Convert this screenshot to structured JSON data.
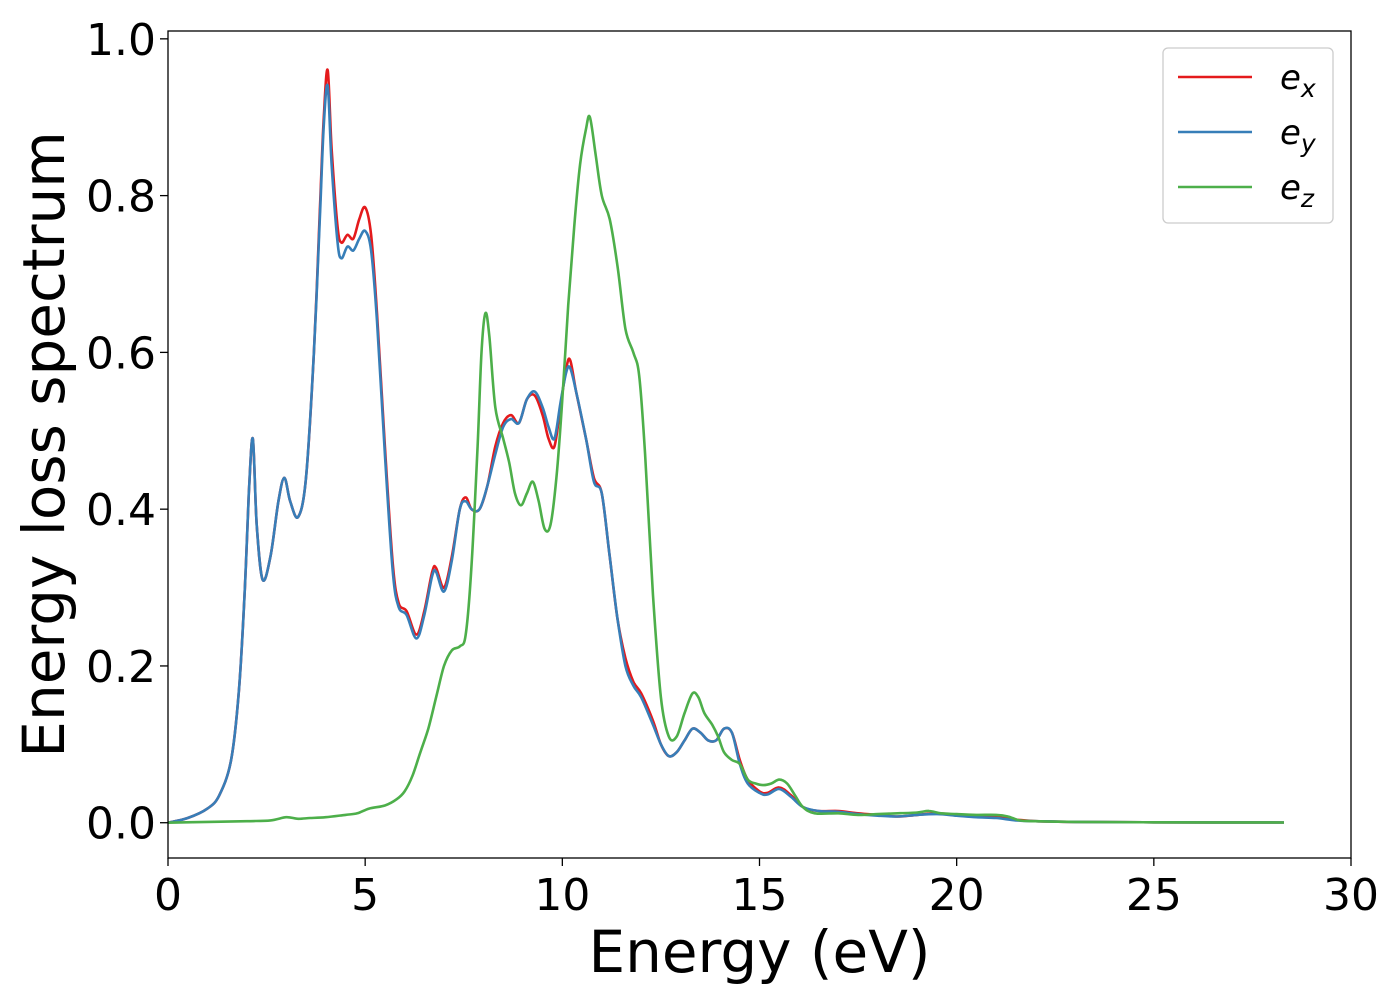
{
  "chart_data": {
    "type": "line",
    "title": "",
    "xlabel": "Energy (eV)",
    "ylabel": "Energy loss spectrum",
    "xlim": [
      0,
      30
    ],
    "ylim": [
      -0.045,
      1.01
    ],
    "xticks": [
      0,
      5,
      10,
      15,
      20,
      25,
      30
    ],
    "xtick_labels": [
      "0",
      "5",
      "10",
      "15",
      "20",
      "25",
      "30"
    ],
    "yticks": [
      0.0,
      0.2,
      0.4,
      0.6,
      0.8,
      1.0
    ],
    "ytick_labels": [
      "0.0",
      "0.2",
      "0.4",
      "0.6",
      "0.8",
      "1.0"
    ],
    "grid": false,
    "legend_position": "top-right",
    "series": [
      {
        "name": "e_x",
        "base": "e",
        "sub": "x",
        "color": "#e41a1c",
        "points": [
          [
            0,
            0
          ],
          [
            0.5,
            0.006
          ],
          [
            1.0,
            0.018
          ],
          [
            1.3,
            0.035
          ],
          [
            1.6,
            0.08
          ],
          [
            1.8,
            0.17
          ],
          [
            1.95,
            0.3
          ],
          [
            2.05,
            0.42
          ],
          [
            2.15,
            0.49
          ],
          [
            2.25,
            0.38
          ],
          [
            2.4,
            0.31
          ],
          [
            2.6,
            0.34
          ],
          [
            2.8,
            0.41
          ],
          [
            2.95,
            0.44
          ],
          [
            3.1,
            0.41
          ],
          [
            3.3,
            0.39
          ],
          [
            3.5,
            0.44
          ],
          [
            3.7,
            0.6
          ],
          [
            3.85,
            0.78
          ],
          [
            3.95,
            0.9
          ],
          [
            4.05,
            0.96
          ],
          [
            4.15,
            0.86
          ],
          [
            4.3,
            0.76
          ],
          [
            4.4,
            0.74
          ],
          [
            4.55,
            0.75
          ],
          [
            4.7,
            0.745
          ],
          [
            4.85,
            0.77
          ],
          [
            5.0,
            0.785
          ],
          [
            5.15,
            0.75
          ],
          [
            5.3,
            0.65
          ],
          [
            5.5,
            0.48
          ],
          [
            5.7,
            0.33
          ],
          [
            5.85,
            0.28
          ],
          [
            6.05,
            0.27
          ],
          [
            6.3,
            0.24
          ],
          [
            6.5,
            0.27
          ],
          [
            6.7,
            0.32
          ],
          [
            6.8,
            0.325
          ],
          [
            7.0,
            0.3
          ],
          [
            7.2,
            0.34
          ],
          [
            7.4,
            0.4
          ],
          [
            7.55,
            0.415
          ],
          [
            7.7,
            0.4
          ],
          [
            7.9,
            0.4
          ],
          [
            8.1,
            0.43
          ],
          [
            8.3,
            0.48
          ],
          [
            8.5,
            0.51
          ],
          [
            8.7,
            0.52
          ],
          [
            8.9,
            0.51
          ],
          [
            9.1,
            0.54
          ],
          [
            9.3,
            0.545
          ],
          [
            9.5,
            0.52
          ],
          [
            9.65,
            0.49
          ],
          [
            9.8,
            0.48
          ],
          [
            9.95,
            0.53
          ],
          [
            10.1,
            0.58
          ],
          [
            10.2,
            0.59
          ],
          [
            10.35,
            0.55
          ],
          [
            10.6,
            0.49
          ],
          [
            10.8,
            0.44
          ],
          [
            11.0,
            0.42
          ],
          [
            11.2,
            0.34
          ],
          [
            11.4,
            0.26
          ],
          [
            11.6,
            0.21
          ],
          [
            11.8,
            0.18
          ],
          [
            12.0,
            0.165
          ],
          [
            12.3,
            0.13
          ],
          [
            12.5,
            0.1
          ],
          [
            12.7,
            0.085
          ],
          [
            12.9,
            0.09
          ],
          [
            13.1,
            0.105
          ],
          [
            13.3,
            0.12
          ],
          [
            13.5,
            0.115
          ],
          [
            13.7,
            0.105
          ],
          [
            13.9,
            0.105
          ],
          [
            14.1,
            0.12
          ],
          [
            14.3,
            0.115
          ],
          [
            14.5,
            0.08
          ],
          [
            14.7,
            0.055
          ],
          [
            15.0,
            0.04
          ],
          [
            15.2,
            0.038
          ],
          [
            15.5,
            0.045
          ],
          [
            15.8,
            0.035
          ],
          [
            16.1,
            0.02
          ],
          [
            16.5,
            0.015
          ],
          [
            17.0,
            0.015
          ],
          [
            17.5,
            0.012
          ],
          [
            18.0,
            0.01
          ],
          [
            18.5,
            0.008
          ],
          [
            19.0,
            0.01
          ],
          [
            19.5,
            0.012
          ],
          [
            20.0,
            0.01
          ],
          [
            20.5,
            0.008
          ],
          [
            21.0,
            0.007
          ],
          [
            21.5,
            0.004
          ],
          [
            22.0,
            0.002
          ],
          [
            23.0,
            0.001
          ],
          [
            25.0,
            0.0005
          ],
          [
            28.3,
            0.0003
          ]
        ]
      },
      {
        "name": "e_y",
        "base": "e",
        "sub": "y",
        "color": "#377eb8",
        "points": [
          [
            0,
            0
          ],
          [
            0.5,
            0.006
          ],
          [
            1.0,
            0.018
          ],
          [
            1.3,
            0.035
          ],
          [
            1.6,
            0.08
          ],
          [
            1.8,
            0.17
          ],
          [
            1.95,
            0.3
          ],
          [
            2.05,
            0.42
          ],
          [
            2.15,
            0.49
          ],
          [
            2.25,
            0.38
          ],
          [
            2.4,
            0.31
          ],
          [
            2.6,
            0.34
          ],
          [
            2.8,
            0.41
          ],
          [
            2.95,
            0.44
          ],
          [
            3.1,
            0.41
          ],
          [
            3.3,
            0.39
          ],
          [
            3.5,
            0.44
          ],
          [
            3.7,
            0.6
          ],
          [
            3.85,
            0.77
          ],
          [
            3.95,
            0.89
          ],
          [
            4.05,
            0.94
          ],
          [
            4.15,
            0.84
          ],
          [
            4.3,
            0.74
          ],
          [
            4.4,
            0.72
          ],
          [
            4.55,
            0.735
          ],
          [
            4.7,
            0.73
          ],
          [
            4.85,
            0.745
          ],
          [
            5.0,
            0.755
          ],
          [
            5.15,
            0.73
          ],
          [
            5.3,
            0.64
          ],
          [
            5.5,
            0.47
          ],
          [
            5.7,
            0.32
          ],
          [
            5.85,
            0.275
          ],
          [
            6.05,
            0.265
          ],
          [
            6.3,
            0.235
          ],
          [
            6.5,
            0.265
          ],
          [
            6.7,
            0.315
          ],
          [
            6.8,
            0.32
          ],
          [
            7.0,
            0.295
          ],
          [
            7.2,
            0.335
          ],
          [
            7.4,
            0.4
          ],
          [
            7.55,
            0.41
          ],
          [
            7.7,
            0.4
          ],
          [
            7.9,
            0.4
          ],
          [
            8.1,
            0.43
          ],
          [
            8.3,
            0.47
          ],
          [
            8.5,
            0.505
          ],
          [
            8.7,
            0.515
          ],
          [
            8.9,
            0.51
          ],
          [
            9.1,
            0.54
          ],
          [
            9.3,
            0.55
          ],
          [
            9.5,
            0.53
          ],
          [
            9.65,
            0.505
          ],
          [
            9.8,
            0.49
          ],
          [
            9.95,
            0.535
          ],
          [
            10.1,
            0.575
          ],
          [
            10.2,
            0.58
          ],
          [
            10.35,
            0.55
          ],
          [
            10.6,
            0.49
          ],
          [
            10.8,
            0.435
          ],
          [
            11.0,
            0.42
          ],
          [
            11.2,
            0.34
          ],
          [
            11.4,
            0.26
          ],
          [
            11.6,
            0.2
          ],
          [
            11.8,
            0.175
          ],
          [
            12.0,
            0.16
          ],
          [
            12.3,
            0.125
          ],
          [
            12.5,
            0.1
          ],
          [
            12.7,
            0.085
          ],
          [
            12.9,
            0.09
          ],
          [
            13.1,
            0.105
          ],
          [
            13.3,
            0.12
          ],
          [
            13.5,
            0.115
          ],
          [
            13.7,
            0.105
          ],
          [
            13.9,
            0.105
          ],
          [
            14.1,
            0.12
          ],
          [
            14.3,
            0.115
          ],
          [
            14.5,
            0.075
          ],
          [
            14.7,
            0.05
          ],
          [
            15.0,
            0.038
          ],
          [
            15.2,
            0.036
          ],
          [
            15.5,
            0.043
          ],
          [
            15.8,
            0.033
          ],
          [
            16.1,
            0.02
          ],
          [
            16.5,
            0.015
          ],
          [
            17.0,
            0.014
          ],
          [
            17.5,
            0.011
          ],
          [
            18.0,
            0.009
          ],
          [
            18.5,
            0.008
          ],
          [
            19.0,
            0.01
          ],
          [
            19.5,
            0.011
          ],
          [
            20.0,
            0.009
          ],
          [
            20.5,
            0.007
          ],
          [
            21.0,
            0.006
          ],
          [
            21.5,
            0.003
          ],
          [
            22.0,
            0.002
          ],
          [
            23.0,
            0.001
          ],
          [
            25.0,
            0.0005
          ],
          [
            28.3,
            0.0003
          ]
        ]
      },
      {
        "name": "e_z",
        "base": "e",
        "sub": "z",
        "color": "#4daf4a",
        "points": [
          [
            0,
            0
          ],
          [
            1.0,
            0.001
          ],
          [
            2.0,
            0.002
          ],
          [
            2.6,
            0.003
          ],
          [
            3.0,
            0.007
          ],
          [
            3.3,
            0.005
          ],
          [
            3.6,
            0.006
          ],
          [
            4.0,
            0.007
          ],
          [
            4.5,
            0.01
          ],
          [
            4.8,
            0.012
          ],
          [
            5.1,
            0.018
          ],
          [
            5.5,
            0.022
          ],
          [
            5.8,
            0.03
          ],
          [
            6.0,
            0.04
          ],
          [
            6.2,
            0.06
          ],
          [
            6.4,
            0.09
          ],
          [
            6.6,
            0.12
          ],
          [
            6.8,
            0.16
          ],
          [
            7.0,
            0.2
          ],
          [
            7.2,
            0.22
          ],
          [
            7.4,
            0.225
          ],
          [
            7.55,
            0.24
          ],
          [
            7.7,
            0.33
          ],
          [
            7.85,
            0.48
          ],
          [
            7.95,
            0.6
          ],
          [
            8.05,
            0.65
          ],
          [
            8.15,
            0.62
          ],
          [
            8.3,
            0.53
          ],
          [
            8.5,
            0.49
          ],
          [
            8.65,
            0.46
          ],
          [
            8.8,
            0.42
          ],
          [
            8.95,
            0.405
          ],
          [
            9.1,
            0.42
          ],
          [
            9.25,
            0.435
          ],
          [
            9.4,
            0.41
          ],
          [
            9.55,
            0.375
          ],
          [
            9.7,
            0.38
          ],
          [
            9.85,
            0.44
          ],
          [
            10.0,
            0.54
          ],
          [
            10.15,
            0.66
          ],
          [
            10.3,
            0.76
          ],
          [
            10.45,
            0.84
          ],
          [
            10.6,
            0.885
          ],
          [
            10.7,
            0.9
          ],
          [
            10.85,
            0.85
          ],
          [
            11.0,
            0.8
          ],
          [
            11.2,
            0.77
          ],
          [
            11.4,
            0.71
          ],
          [
            11.6,
            0.63
          ],
          [
            11.8,
            0.6
          ],
          [
            11.95,
            0.57
          ],
          [
            12.1,
            0.47
          ],
          [
            12.3,
            0.29
          ],
          [
            12.5,
            0.16
          ],
          [
            12.7,
            0.11
          ],
          [
            12.9,
            0.11
          ],
          [
            13.1,
            0.14
          ],
          [
            13.3,
            0.165
          ],
          [
            13.45,
            0.16
          ],
          [
            13.6,
            0.14
          ],
          [
            13.8,
            0.125
          ],
          [
            13.95,
            0.11
          ],
          [
            14.1,
            0.09
          ],
          [
            14.3,
            0.08
          ],
          [
            14.5,
            0.075
          ],
          [
            14.7,
            0.055
          ],
          [
            14.9,
            0.05
          ],
          [
            15.1,
            0.048
          ],
          [
            15.3,
            0.05
          ],
          [
            15.5,
            0.055
          ],
          [
            15.7,
            0.05
          ],
          [
            15.9,
            0.035
          ],
          [
            16.1,
            0.02
          ],
          [
            16.4,
            0.012
          ],
          [
            17.0,
            0.012
          ],
          [
            17.5,
            0.01
          ],
          [
            18.0,
            0.011
          ],
          [
            18.5,
            0.012
          ],
          [
            19.0,
            0.013
          ],
          [
            19.3,
            0.015
          ],
          [
            19.6,
            0.012
          ],
          [
            20.0,
            0.011
          ],
          [
            20.5,
            0.01
          ],
          [
            21.0,
            0.01
          ],
          [
            21.3,
            0.008
          ],
          [
            21.6,
            0.003
          ],
          [
            22.0,
            0.002
          ],
          [
            23.0,
            0.001
          ],
          [
            25.0,
            0.0005
          ],
          [
            28.3,
            0.0003
          ]
        ]
      }
    ]
  }
}
